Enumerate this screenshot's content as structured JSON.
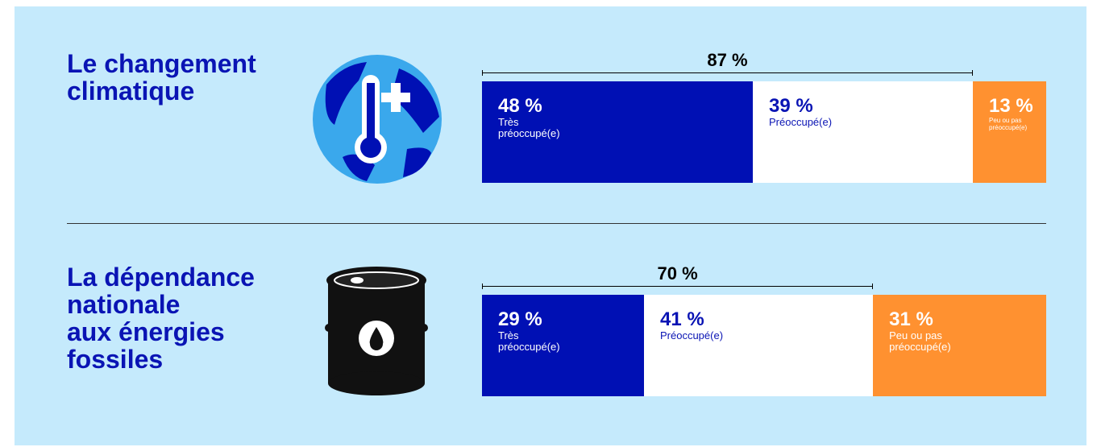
{
  "chart_data": [
    {
      "type": "stacked-bar",
      "title": [
        "Le changement",
        "climatique"
      ],
      "annotation": {
        "value": 87,
        "label": "87 %"
      },
      "xlim": [
        0,
        100
      ],
      "series": [
        {
          "name": "Très préoccupé(e)",
          "color": "#0010b4",
          "values": [
            48
          ],
          "value_labels": [
            "48 %"
          ]
        },
        {
          "name": "Préoccupé(e)",
          "color": "#ffffff",
          "values": [
            39
          ],
          "value_labels": [
            "39 %"
          ]
        },
        {
          "name": "Peu ou pas préoccupé(e)",
          "color": "#ff9130",
          "values": [
            13
          ],
          "value_labels": [
            "13 %"
          ]
        }
      ]
    },
    {
      "type": "stacked-bar",
      "title": [
        "La dépendance",
        "nationale",
        "aux énergies",
        "fossiles"
      ],
      "annotation": {
        "value": 70,
        "label": "70 %"
      },
      "xlim": [
        0,
        101
      ],
      "series": [
        {
          "name": "Très préoccupé(e)",
          "color": "#0010b4",
          "values": [
            29
          ],
          "value_labels": [
            "29 %"
          ]
        },
        {
          "name": "Préoccupé(e)",
          "color": "#ffffff",
          "values": [
            41
          ],
          "value_labels": [
            "41 %"
          ]
        },
        {
          "name": "Peu ou pas préoccupé(e)",
          "color": "#ff9130",
          "values": [
            31
          ],
          "value_labels": [
            "31 %"
          ]
        }
      ]
    }
  ]
}
